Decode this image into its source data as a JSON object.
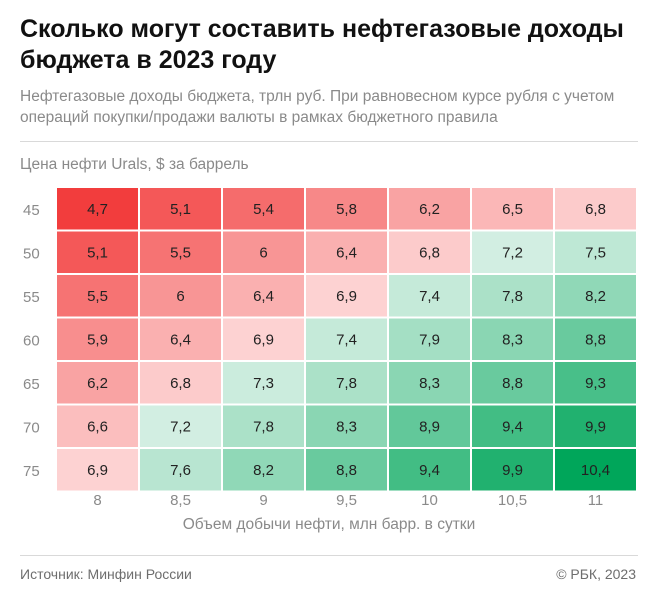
{
  "header": {
    "title": "Сколько могут составить нефтегазовые доходы бюджета в 2023 году",
    "subtitle": "Нефтегазовые доходы бюджета, трлн руб. При равновесном курсе рубля с учетом операций покупки/продажи валюты в рамках бюджетного правила"
  },
  "chart_data": {
    "type": "heatmap",
    "ylabel": "Цена нефти Urals, $ за баррель",
    "xlabel": "Объем добычи нефти, млн барр. в сутки",
    "x": [
      "8",
      "8,5",
      "9",
      "9,5",
      "10",
      "10,5",
      "11"
    ],
    "y": [
      "45",
      "50",
      "55",
      "60",
      "65",
      "70",
      "75"
    ],
    "values": [
      [
        "4,7",
        "5,1",
        "5,4",
        "5,8",
        "6,2",
        "6,5",
        "6,8"
      ],
      [
        "5,1",
        "5,5",
        "6",
        "6,4",
        "6,8",
        "7,2",
        "7,5"
      ],
      [
        "5,5",
        "6",
        "6,4",
        "6,9",
        "7,4",
        "7,8",
        "8,2"
      ],
      [
        "5,9",
        "6,4",
        "6,9",
        "7,4",
        "7,9",
        "8,3",
        "8,8"
      ],
      [
        "6,2",
        "6,8",
        "7,3",
        "7,8",
        "8,3",
        "8,8",
        "9,3"
      ],
      [
        "6,6",
        "7,2",
        "7,8",
        "8,3",
        "8,9",
        "9,4",
        "9,9"
      ],
      [
        "6,9",
        "7,6",
        "8,2",
        "8,8",
        "9,4",
        "9,9",
        "10,4"
      ]
    ],
    "colors": {
      "low": "#f23d3d",
      "mid_low": "#fdd9d9",
      "mid_high": "#dff3ea",
      "high": "#00a65a",
      "text": "#222222",
      "axis_text": "#8a8a8a"
    }
  },
  "footer": {
    "source": "Источник: Минфин России",
    "credit": "© РБК, 2023"
  }
}
